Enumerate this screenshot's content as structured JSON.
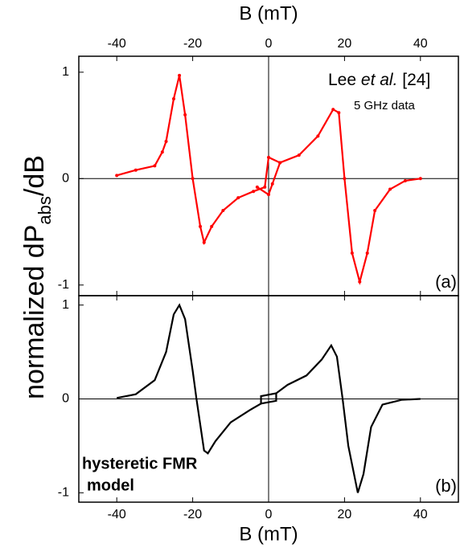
{
  "ylabel": [
    "normalized dP",
    "abs",
    "/dB"
  ],
  "chart_data": [
    {
      "type": "line",
      "xlabel": "B (mT)",
      "xaxis_position": "top",
      "zero_lines": true,
      "xlim": [
        -50,
        50
      ],
      "ylim": [
        -1.1,
        1.15
      ],
      "xticks": [
        -40,
        -20,
        0,
        20,
        40
      ],
      "yticks": [
        1,
        0,
        -1
      ],
      "markers": true,
      "annotations": [
        "Lee",
        "et al.",
        "[24]",
        "5 GHz data",
        "(a)"
      ],
      "series": [
        {
          "color": "#ff0000",
          "x": [
            -40,
            -35,
            -30,
            -28,
            -27,
            -25,
            -23.5,
            -22,
            -20,
            -18,
            -17,
            -15,
            -12,
            -8,
            -4,
            -1,
            0,
            3,
            8,
            13,
            17,
            18.5,
            20,
            22,
            24,
            26,
            28,
            32,
            36,
            40
          ],
          "values": [
            0.03,
            0.08,
            0.12,
            0.25,
            0.35,
            0.75,
            0.97,
            0.6,
            0,
            -0.45,
            -0.6,
            -0.45,
            -0.3,
            -0.18,
            -0.12,
            -0.08,
            0.2,
            0.15,
            0.22,
            0.4,
            0.65,
            0.62,
            0,
            -0.7,
            -0.97,
            -0.7,
            -0.3,
            -0.1,
            -0.02,
            0
          ]
        },
        {
          "color": "#ff0000",
          "x": [
            -3,
            0,
            1,
            3
          ],
          "values": [
            -0.08,
            -0.15,
            -0.05,
            0.15
          ]
        }
      ]
    },
    {
      "type": "line",
      "xlabel": "B (mT)",
      "xaxis_position": "bottom",
      "zero_lines": true,
      "xlim": [
        -50,
        50
      ],
      "ylim": [
        -1.1,
        1.1
      ],
      "xticks": [
        -40,
        -20,
        0,
        20,
        40
      ],
      "yticks": [
        1,
        0,
        -1
      ],
      "markers": false,
      "annotations": [
        "hysteretic FMR",
        "model",
        "(b)"
      ],
      "series": [
        {
          "color": "#000000",
          "x": [
            -40,
            -35,
            -30,
            -27,
            -25,
            -23.5,
            -22,
            -20,
            -19,
            -17,
            -16,
            -14,
            -10,
            -5,
            -2,
            -2,
            2,
            5,
            10,
            14,
            16.5,
            18,
            19.5,
            21,
            23.5,
            25,
            27,
            30,
            35,
            40
          ],
          "values": [
            0.01,
            0.05,
            0.2,
            0.5,
            0.9,
            1,
            0.85,
            0.3,
            0,
            -0.55,
            -0.58,
            -0.45,
            -0.25,
            -0.12,
            -0.05,
            0.03,
            0.06,
            0.15,
            0.25,
            0.42,
            0.57,
            0.45,
            0,
            -0.5,
            -1,
            -0.8,
            -0.3,
            -0.06,
            -0.01,
            0
          ]
        },
        {
          "color": "#000000",
          "x": [
            -2,
            2,
            2
          ],
          "values": [
            -0.05,
            -0.02,
            0.06
          ]
        }
      ]
    }
  ]
}
